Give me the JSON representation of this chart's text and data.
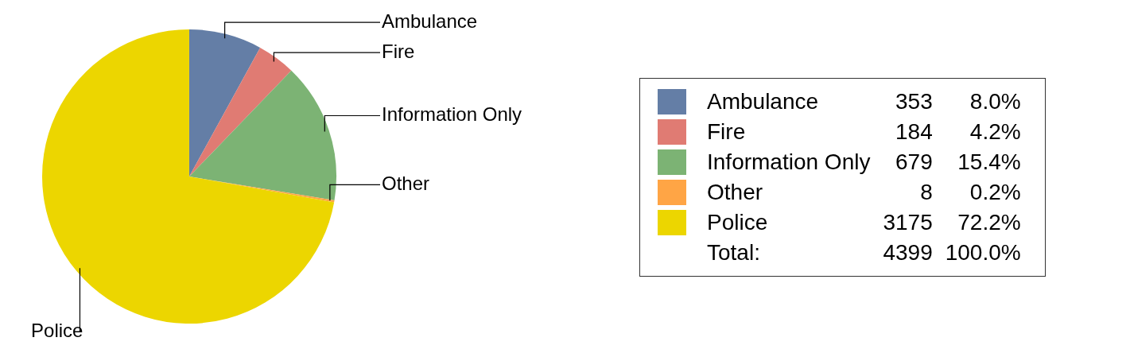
{
  "chart_data": {
    "type": "pie",
    "categories": [
      "Ambulance",
      "Fire",
      "Information Only",
      "Other",
      "Police"
    ],
    "values": [
      8.0,
      4.2,
      15.4,
      0.2,
      72.2
    ],
    "colors": [
      "#647ea6",
      "#e07b73",
      "#7cb374",
      "#ffa545",
      "#ecd600"
    ],
    "value_labels": [
      "8.0%",
      "4.2%",
      "15.4%",
      "0.2%",
      "72.2%"
    ],
    "totals": [
      "4399",
      "100.0%"
    ],
    "annotations": [
      "353",
      "184",
      "679",
      "8",
      "3175",
      "Total:"
    ],
    "legend": "right"
  }
}
